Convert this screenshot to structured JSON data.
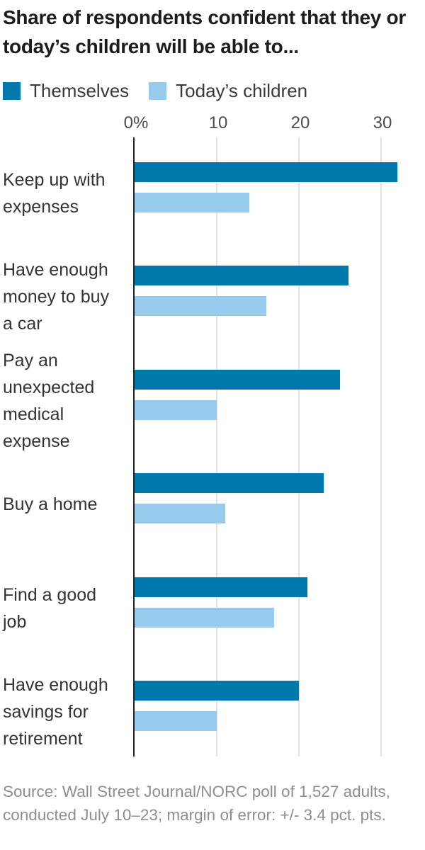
{
  "title": "Share of respondents confident that they or today’s children will be able to...",
  "source": "Source: Wall Street Journal/NORC poll of 1,527 adults, conducted July 10–23; margin of error: +/- 3.4 pct. pts.",
  "colors": {
    "themselves": "#0078ac",
    "todays_children": "#96cbee",
    "axis": "#222222",
    "gridline": "#e2e2e2"
  },
  "chart_data": {
    "type": "bar",
    "orientation": "horizontal",
    "title": "Share of respondents confident that they or today’s children will be able to...",
    "categories": [
      "Keep up with expenses",
      "Have enough money to buy a car",
      "Pay an unexpected medical expense",
      "Buy a home",
      "Find a good job",
      "Have enough savings for retirement"
    ],
    "series": [
      {
        "name": "Themselves",
        "color": "#0078ac",
        "values": [
          32,
          26,
          25,
          23,
          21,
          20
        ]
      },
      {
        "name": "Today’s children",
        "color": "#96cbee",
        "values": [
          14,
          16,
          10,
          11,
          17,
          10
        ]
      }
    ],
    "x_ticks": [
      "0%",
      "10",
      "20",
      "30"
    ],
    "x_tick_values": [
      0,
      10,
      20,
      30
    ],
    "xlim": [
      0,
      34.5
    ],
    "grid": true,
    "legend_position": "top",
    "unit": "percent"
  }
}
